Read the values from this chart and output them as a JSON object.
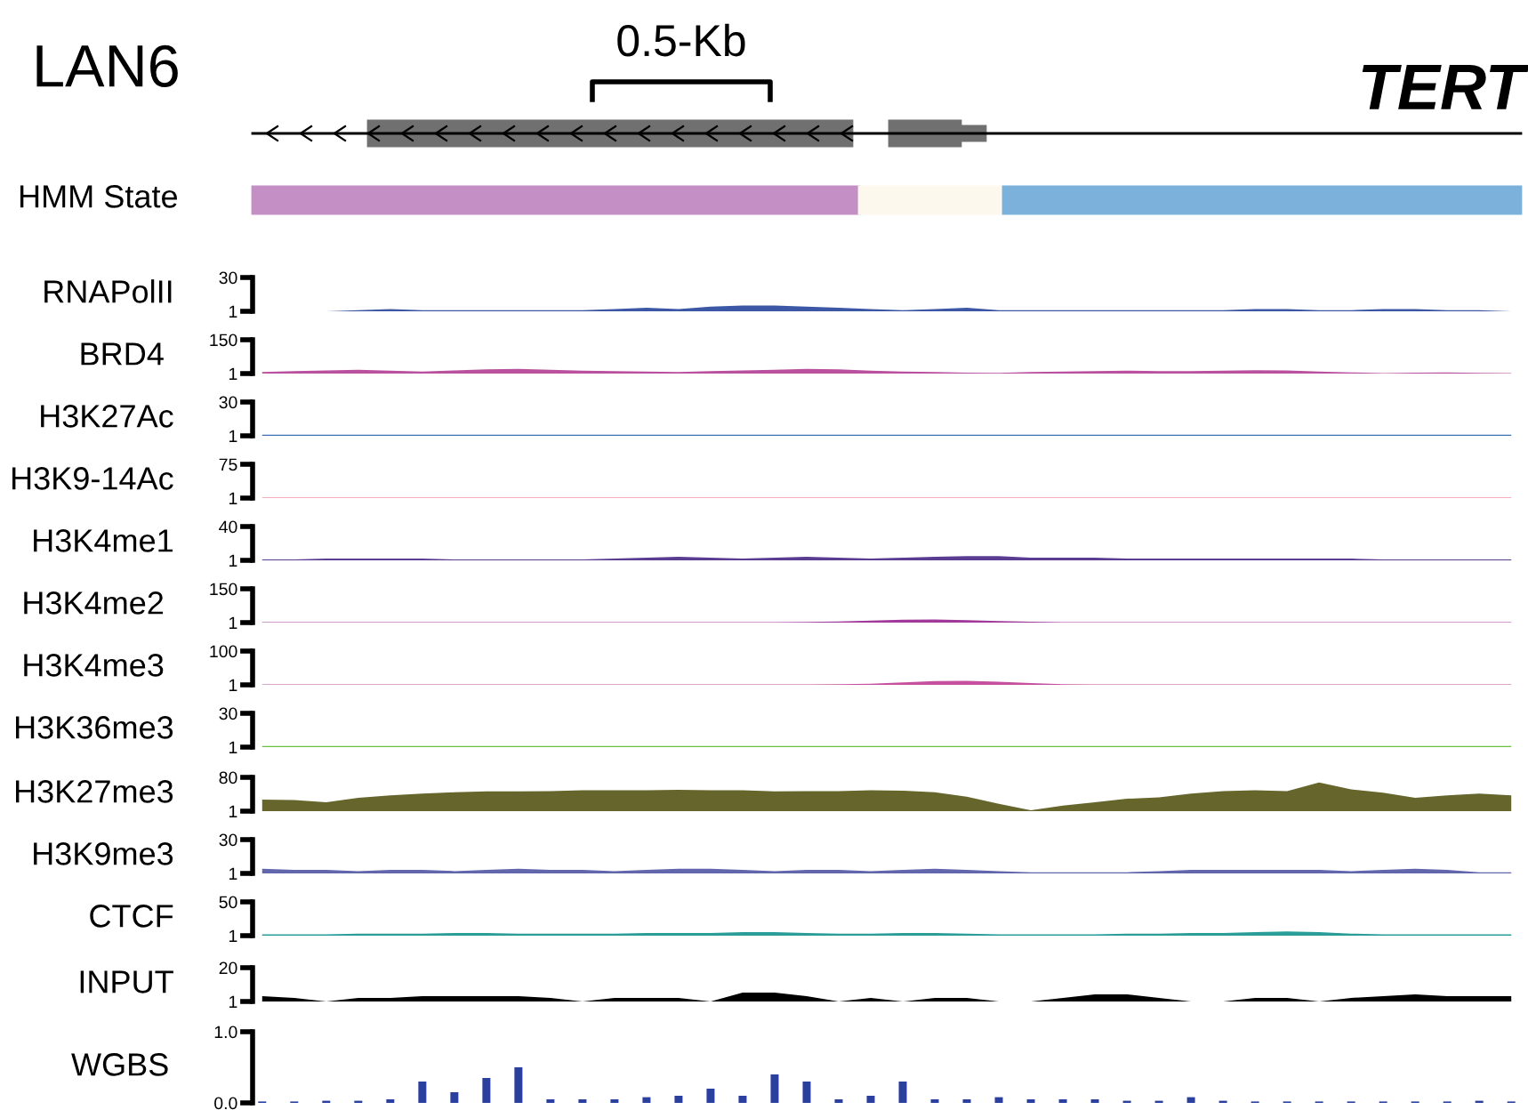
{
  "chart_data": [
    {
      "type": "other",
      "title": "LAN6",
      "annotations": [
        "0.5-Kb",
        "TERT",
        "HMM State"
      ]
    },
    {
      "type": "area",
      "ylabel": "RNAPolII",
      "color": "#3b57a6",
      "ylim": [
        1,
        30
      ],
      "yticks": [
        1,
        30
      ],
      "categories": [
        null,
        null,
        null,
        null,
        null,
        null,
        null,
        null,
        null,
        null,
        null,
        null,
        null,
        null,
        null,
        null,
        null,
        null,
        null,
        null,
        null,
        null,
        null,
        null,
        null,
        null,
        null,
        null,
        null,
        null,
        null,
        null,
        null,
        null,
        null,
        null,
        null,
        null,
        null,
        null
      ],
      "values": [
        1,
        1,
        1,
        2,
        3,
        2,
        2,
        2,
        2,
        2,
        2,
        3,
        4,
        3,
        5,
        6,
        6,
        5,
        4,
        3,
        2,
        3,
        4,
        2,
        2,
        2,
        2,
        2,
        2,
        2,
        2,
        3,
        3,
        2,
        2,
        3,
        3,
        2,
        2,
        1
      ]
    },
    {
      "type": "area",
      "ylabel": "BRD4",
      "color": "#b9519e",
      "ylim": [
        1,
        150
      ],
      "yticks": [
        1,
        150
      ],
      "categories": [
        null,
        null,
        null,
        null,
        null,
        null,
        null,
        null,
        null,
        null,
        null,
        null,
        null,
        null,
        null,
        null,
        null,
        null,
        null,
        null,
        null,
        null,
        null,
        null,
        null,
        null,
        null,
        null,
        null,
        null,
        null,
        null,
        null,
        null,
        null,
        null,
        null,
        null,
        null,
        null
      ],
      "values": [
        8,
        12,
        15,
        18,
        14,
        10,
        15,
        20,
        22,
        18,
        14,
        12,
        10,
        8,
        12,
        15,
        18,
        22,
        20,
        14,
        10,
        8,
        5,
        4,
        8,
        10,
        12,
        14,
        12,
        12,
        14,
        16,
        15,
        10,
        6,
        3,
        5,
        6,
        4,
        3
      ]
    },
    {
      "type": "area",
      "ylabel": "H3K27Ac",
      "color": "#3d6fb6",
      "ylim": [
        1,
        30
      ],
      "yticks": [
        1,
        30
      ],
      "categories": [
        null,
        null,
        null,
        null,
        null,
        null,
        null,
        null,
        null,
        null,
        null,
        null,
        null,
        null,
        null,
        null,
        null,
        null,
        null,
        null,
        null,
        null,
        null,
        null,
        null,
        null,
        null,
        null,
        null,
        null,
        null,
        null,
        null,
        null,
        null,
        null,
        null,
        null,
        null,
        null
      ],
      "values": [
        2,
        2,
        2,
        2,
        2,
        2,
        2,
        2,
        2,
        2,
        2,
        2,
        2,
        2,
        2,
        2,
        2,
        2,
        2,
        2,
        2,
        2,
        2,
        2,
        2,
        2,
        2,
        2,
        2,
        2,
        2,
        2,
        2,
        2,
        2,
        2,
        2,
        2,
        2,
        2
      ]
    },
    {
      "type": "area",
      "ylabel": "H3K9-14Ac",
      "color": "#f0607a",
      "ylim": [
        1,
        75
      ],
      "yticks": [
        1,
        75
      ],
      "categories": [
        null,
        null,
        null,
        null,
        null,
        null,
        null,
        null,
        null,
        null,
        null,
        null,
        null,
        null,
        null,
        null,
        null,
        null,
        null,
        null,
        null,
        null,
        null,
        null,
        null,
        null,
        null,
        null,
        null,
        null,
        null,
        null,
        null,
        null,
        null,
        null,
        null,
        null,
        null,
        null
      ],
      "values": [
        2,
        2,
        2,
        2,
        2,
        2,
        2,
        2,
        2,
        2,
        2,
        2,
        2,
        2,
        2,
        2,
        2,
        2,
        2,
        2,
        2,
        2,
        2,
        2,
        2,
        2,
        2,
        2,
        2,
        2,
        2,
        2,
        2,
        2,
        2,
        2,
        2,
        2,
        2,
        2
      ]
    },
    {
      "type": "area",
      "ylabel": "H3K4me1",
      "color": "#5a3d92",
      "ylim": [
        1,
        40
      ],
      "yticks": [
        1,
        40
      ],
      "categories": [
        null,
        null,
        null,
        null,
        null,
        null,
        null,
        null,
        null,
        null,
        null,
        null,
        null,
        null,
        null,
        null,
        null,
        null,
        null,
        null,
        null,
        null,
        null,
        null,
        null,
        null,
        null,
        null,
        null,
        null,
        null,
        null,
        null,
        null,
        null,
        null,
        null,
        null,
        null,
        null
      ],
      "values": [
        2,
        2,
        3,
        3,
        3,
        3,
        2,
        2,
        2,
        2,
        2,
        3,
        4,
        5,
        4,
        3,
        4,
        5,
        4,
        3,
        4,
        5,
        6,
        6,
        4,
        4,
        4,
        3,
        3,
        3,
        3,
        3,
        3,
        3,
        3,
        2,
        2,
        2,
        2,
        2
      ]
    },
    {
      "type": "area",
      "ylabel": "H3K4me2",
      "color": "#a0399a",
      "ylim": [
        1,
        150
      ],
      "yticks": [
        1,
        150
      ],
      "categories": [
        null,
        null,
        null,
        null,
        null,
        null,
        null,
        null,
        null,
        null,
        null,
        null,
        null,
        null,
        null,
        null,
        null,
        null,
        null,
        null,
        null,
        null,
        null,
        null,
        null,
        null,
        null,
        null,
        null,
        null,
        null,
        null,
        null,
        null,
        null,
        null,
        null,
        null,
        null,
        null
      ],
      "values": [
        3,
        3,
        3,
        3,
        3,
        3,
        3,
        3,
        3,
        3,
        3,
        3,
        3,
        3,
        3,
        3,
        3,
        4,
        6,
        10,
        14,
        15,
        12,
        8,
        5,
        3,
        3,
        3,
        3,
        3,
        3,
        3,
        3,
        3,
        3,
        3,
        3,
        3,
        3,
        3
      ]
    },
    {
      "type": "area",
      "ylabel": "H3K4me3",
      "color": "#c5519e",
      "ylim": [
        1,
        100
      ],
      "yticks": [
        1,
        100
      ],
      "categories": [
        null,
        null,
        null,
        null,
        null,
        null,
        null,
        null,
        null,
        null,
        null,
        null,
        null,
        null,
        null,
        null,
        null,
        null,
        null,
        null,
        null,
        null,
        null,
        null,
        null,
        null,
        null,
        null,
        null,
        null,
        null,
        null,
        null,
        null,
        null,
        null,
        null,
        null,
        null,
        null
      ],
      "values": [
        2,
        2,
        2,
        2,
        2,
        2,
        2,
        2,
        2,
        2,
        2,
        2,
        2,
        2,
        2,
        2,
        2,
        2,
        3,
        4,
        8,
        12,
        13,
        10,
        6,
        3,
        2,
        2,
        2,
        2,
        2,
        2,
        2,
        2,
        2,
        2,
        2,
        2,
        2,
        2
      ]
    },
    {
      "type": "area",
      "ylabel": "H3K36me3",
      "color": "#6abf3f",
      "ylim": [
        1,
        30
      ],
      "yticks": [
        1,
        30
      ],
      "categories": [
        null,
        null,
        null,
        null,
        null,
        null,
        null,
        null,
        null,
        null,
        null,
        null,
        null,
        null,
        null,
        null,
        null,
        null,
        null,
        null,
        null,
        null,
        null,
        null,
        null,
        null,
        null,
        null,
        null,
        null,
        null,
        null,
        null,
        null,
        null,
        null,
        null,
        null,
        null,
        null
      ],
      "values": [
        2,
        2,
        2,
        2,
        2,
        2,
        2,
        2,
        2,
        2,
        2,
        2,
        2,
        2,
        2,
        2,
        2,
        2,
        2,
        2,
        2,
        2,
        2,
        2,
        2,
        2,
        2,
        2,
        2,
        2,
        2,
        2,
        2,
        2,
        2,
        2,
        2,
        2,
        2,
        2
      ]
    },
    {
      "type": "area",
      "ylabel": "H3K27me3",
      "color": "#66662c",
      "ylim": [
        1,
        80
      ],
      "yticks": [
        1,
        80
      ],
      "categories": [
        null,
        null,
        null,
        null,
        null,
        null,
        null,
        null,
        null,
        null,
        null,
        null,
        null,
        null,
        null,
        null,
        null,
        null,
        null,
        null,
        null,
        null,
        null,
        null,
        null,
        null,
        null,
        null,
        null,
        null,
        null,
        null,
        null,
        null,
        null,
        null,
        null,
        null,
        null,
        null
      ],
      "values": [
        28,
        27,
        22,
        32,
        38,
        42,
        45,
        47,
        47,
        48,
        50,
        50,
        50,
        51,
        50,
        50,
        47,
        48,
        48,
        50,
        49,
        45,
        35,
        18,
        3,
        14,
        22,
        30,
        33,
        42,
        48,
        50,
        48,
        68,
        52,
        44,
        32,
        38,
        42,
        38
      ]
    },
    {
      "type": "area",
      "ylabel": "H3K9me3",
      "color": "#6266ad",
      "ylim": [
        1,
        30
      ],
      "yticks": [
        1,
        30
      ],
      "categories": [
        null,
        null,
        null,
        null,
        null,
        null,
        null,
        null,
        null,
        null,
        null,
        null,
        null,
        null,
        null,
        null,
        null,
        null,
        null,
        null,
        null,
        null,
        null,
        null,
        null,
        null,
        null,
        null,
        null,
        null,
        null,
        null,
        null,
        null,
        null,
        null,
        null,
        null,
        null,
        null
      ],
      "values": [
        5,
        4,
        4,
        3,
        4,
        4,
        3,
        4,
        5,
        4,
        4,
        3,
        4,
        5,
        5,
        4,
        3,
        4,
        4,
        3,
        4,
        5,
        4,
        3,
        2,
        2,
        2,
        2,
        3,
        4,
        4,
        4,
        4,
        4,
        3,
        4,
        5,
        4,
        2,
        2
      ]
    },
    {
      "type": "area",
      "ylabel": "CTCF",
      "color": "#2a9d98",
      "ylim": [
        1,
        50
      ],
      "yticks": [
        1,
        50
      ],
      "categories": [
        null,
        null,
        null,
        null,
        null,
        null,
        null,
        null,
        null,
        null,
        null,
        null,
        null,
        null,
        null,
        null,
        null,
        null,
        null,
        null,
        null,
        null,
        null,
        null,
        null,
        null,
        null,
        null,
        null,
        null,
        null,
        null,
        null,
        null,
        null,
        null,
        null,
        null,
        null,
        null
      ],
      "values": [
        3,
        3,
        3,
        4,
        4,
        4,
        5,
        5,
        4,
        4,
        4,
        4,
        5,
        5,
        5,
        6,
        6,
        5,
        4,
        4,
        5,
        5,
        4,
        3,
        3,
        3,
        3,
        4,
        4,
        5,
        5,
        6,
        7,
        6,
        4,
        3,
        3,
        3,
        3,
        3
      ]
    },
    {
      "type": "area",
      "ylabel": "INPUT",
      "color": "#000000",
      "ylim": [
        1,
        20
      ],
      "yticks": [
        1,
        20
      ],
      "categories": [
        null,
        null,
        null,
        null,
        null,
        null,
        null,
        null,
        null,
        null,
        null,
        null,
        null,
        null,
        null,
        null,
        null,
        null,
        null,
        null,
        null,
        null,
        null,
        null,
        null,
        null,
        null,
        null,
        null,
        null,
        null,
        null,
        null,
        null,
        null,
        null,
        null,
        null,
        null,
        null
      ],
      "values": [
        4,
        3,
        1,
        3,
        3,
        4,
        4,
        4,
        4,
        3,
        1,
        3,
        3,
        3,
        1,
        6,
        6,
        4,
        1,
        3,
        1,
        3,
        3,
        1,
        1,
        3,
        5,
        5,
        3,
        1,
        1,
        3,
        3,
        1,
        3,
        4,
        5,
        4,
        4,
        4
      ]
    },
    {
      "type": "bar",
      "ylabel": "WGBS",
      "color": "#2b3f9e",
      "ylim": [
        0.0,
        1.0
      ],
      "yticks": [
        {
          "value": 0,
          "label": "0.0"
        },
        {
          "value": 1,
          "label": "1.0"
        }
      ],
      "categories": [
        null,
        null,
        null,
        null,
        null,
        null,
        null,
        null,
        null,
        null,
        null,
        null,
        null,
        null,
        null,
        null,
        null,
        null,
        null,
        null,
        null,
        null,
        null,
        null,
        null,
        null,
        null,
        null,
        null,
        null,
        null,
        null,
        null,
        null,
        null,
        null,
        null,
        null,
        null,
        null
      ],
      "values": [
        0.02,
        0.02,
        0.03,
        0.03,
        0.05,
        0.3,
        0.15,
        0.35,
        0.5,
        0.05,
        0.05,
        0.05,
        0.08,
        0.1,
        0.2,
        0.1,
        0.4,
        0.3,
        0.05,
        0.1,
        0.3,
        0.05,
        0.05,
        0.08,
        0.05,
        0.05,
        0.05,
        0.03,
        0.03,
        0.08,
        0.03,
        0.02,
        0.02,
        0.02,
        0.02,
        0.02,
        0.02,
        0.02,
        0.03,
        0.02
      ]
    }
  ]
}
